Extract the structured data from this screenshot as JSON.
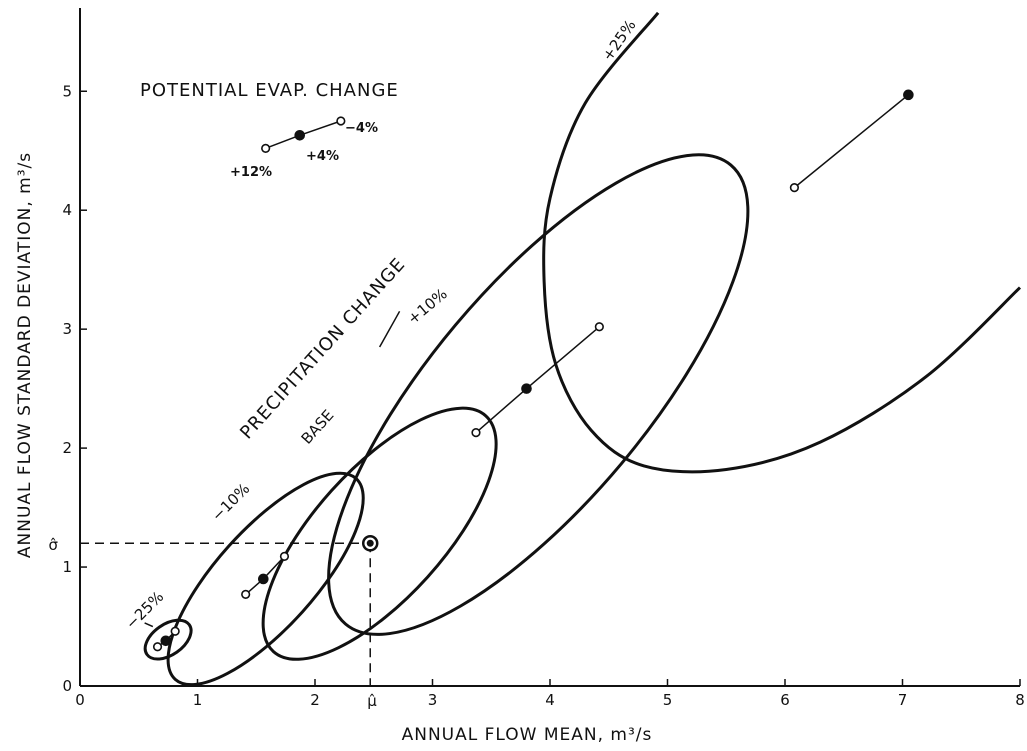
{
  "chart_data": {
    "type": "scatter",
    "title": "",
    "xlabel": "ANNUAL FLOW MEAN, m³/s",
    "ylabel": "ANNUAL FLOW STANDARD DEVIATION, m³/s",
    "xlim": [
      0,
      8
    ],
    "ylim": [
      0,
      5.7
    ],
    "xticks": [
      "0",
      "1",
      "2",
      "3",
      "4",
      "5",
      "6",
      "7",
      "8"
    ],
    "yticks": [
      "0",
      "1",
      "2",
      "3",
      "4",
      "5"
    ],
    "x_marker": {
      "label": "μ̂",
      "value": 2.47
    },
    "y_marker": {
      "label": "σ̂",
      "value": 1.2
    },
    "base_point": {
      "x": 2.47,
      "y": 1.2
    },
    "annotations": {
      "potential_evap": "POTENTIAL EVAP. CHANGE",
      "precipitation": "PRECIPITATION CHANGE",
      "base": "BASE",
      "minus10": "−10%",
      "minus25": "−25%",
      "plus10": "+10%",
      "plus25": "+25%",
      "evap_plus12": "+12%",
      "evap_plus4": "+4%",
      "evap_minus4": "−4%"
    },
    "series": [
      {
        "name": "−25%",
        "points": [
          [
            0.66,
            0.33
          ],
          [
            0.73,
            0.38
          ],
          [
            0.81,
            0.46
          ]
        ]
      },
      {
        "name": "−10%",
        "points": [
          [
            1.41,
            0.77
          ],
          [
            1.56,
            0.9
          ],
          [
            1.74,
            1.09
          ]
        ]
      },
      {
        "name": "+10%",
        "points": [
          [
            3.37,
            2.13
          ],
          [
            3.8,
            2.5
          ],
          [
            4.42,
            3.02
          ]
        ]
      },
      {
        "name": "+25%",
        "points": [
          [
            6.08,
            4.19
          ],
          [
            7.05,
            4.97
          ]
        ]
      },
      {
        "name": "POTENTIAL EVAP. CHANGE",
        "points": [
          [
            1.58,
            4.52
          ],
          [
            1.87,
            4.63
          ],
          [
            2.22,
            4.75
          ]
        ]
      }
    ],
    "ellipses": [
      {
        "name": "−25%",
        "cx": 0.75,
        "cy": 0.39,
        "rx": 0.22,
        "ry": 0.13,
        "angle_deg": 35
      },
      {
        "name": "−10%",
        "cx": 1.58,
        "cy": 0.9,
        "rx": 1.15,
        "ry": 0.42,
        "angle_deg": 48
      },
      {
        "name": "BASE",
        "cx": 2.55,
        "cy": 1.28,
        "rx": 1.35,
        "ry": 0.55,
        "angle_deg": 48
      },
      {
        "name": "+10%",
        "cx": 3.9,
        "cy": 2.45,
        "rx": 2.55,
        "ry": 0.92,
        "angle_deg": 50
      }
    ]
  }
}
